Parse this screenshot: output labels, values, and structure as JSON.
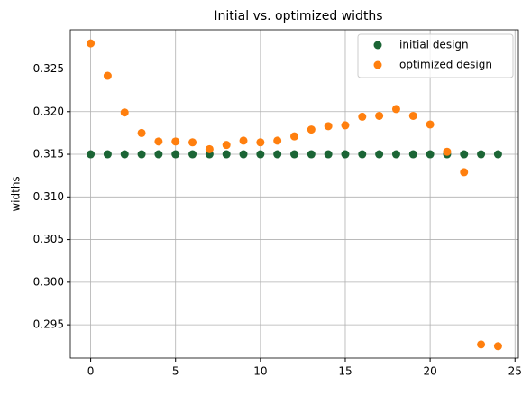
{
  "chart_data": {
    "type": "scatter",
    "title": "Initial vs. optimized widths",
    "ylabel": "widths",
    "x": [
      0,
      1,
      2,
      3,
      4,
      5,
      6,
      7,
      8,
      9,
      10,
      11,
      12,
      13,
      14,
      15,
      16,
      17,
      18,
      19,
      20,
      21,
      22,
      23,
      24
    ],
    "series": [
      {
        "name": "initial design",
        "color": "#1b6535",
        "values": [
          0.315,
          0.315,
          0.315,
          0.315,
          0.315,
          0.315,
          0.315,
          0.315,
          0.315,
          0.315,
          0.315,
          0.315,
          0.315,
          0.315,
          0.315,
          0.315,
          0.315,
          0.315,
          0.315,
          0.315,
          0.315,
          0.315,
          0.315,
          0.315,
          0.315
        ]
      },
      {
        "name": "optimized design",
        "color": "#ff7f0e",
        "values": [
          0.328,
          0.3242,
          0.3199,
          0.3175,
          0.3165,
          0.3165,
          0.3164,
          0.3156,
          0.3161,
          0.3166,
          0.3164,
          0.3166,
          0.3171,
          0.3179,
          0.3183,
          0.3184,
          0.3194,
          0.3195,
          0.3203,
          0.3195,
          0.3185,
          0.3153,
          0.3129,
          0.2927,
          0.2925
        ]
      }
    ],
    "xlim": [
      -1.2,
      25.2
    ],
    "xticks": [
      0,
      5,
      10,
      15,
      20,
      25
    ],
    "ylim": [
      0.2911,
      0.3296
    ],
    "yticks": [
      0.295,
      {
        "value": 0.3,
        "label": "0.300"
      },
      0.305,
      {
        "value": 0.31,
        "label": "0.310"
      },
      0.315,
      {
        "value": 0.32,
        "label": "0.320"
      },
      0.325
    ],
    "grid": true,
    "legend": "upper right"
  }
}
